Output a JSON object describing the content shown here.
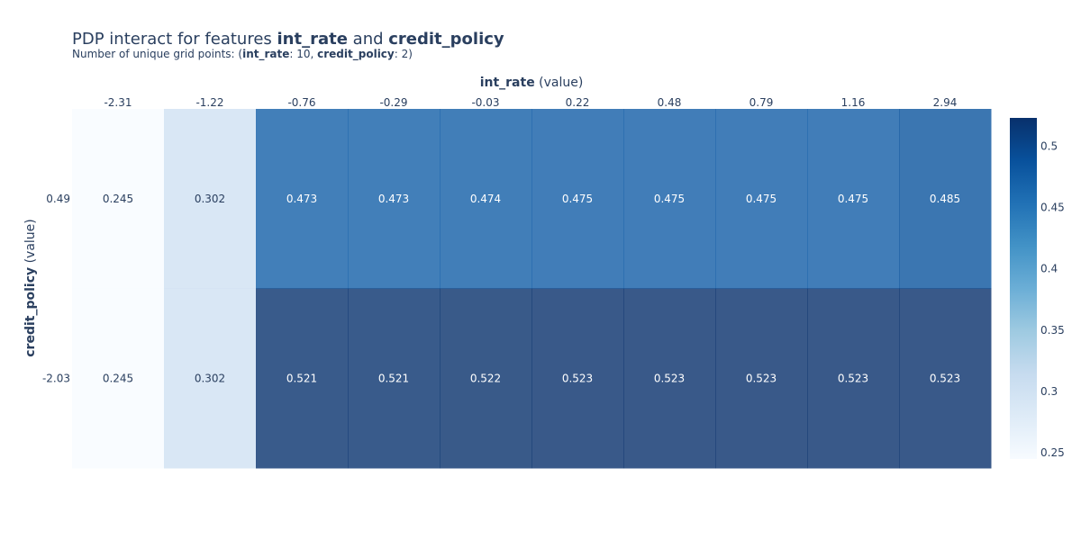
{
  "title": {
    "prefix": "PDP interact for features ",
    "feature_x": "int_rate",
    "joiner": " and ",
    "feature_y": "credit_policy"
  },
  "subtitle": {
    "prefix": "Number of unique grid points: (",
    "feature_x": "int_rate",
    "count_x": ": 10, ",
    "feature_y": "credit_policy",
    "count_y": ": 2)"
  },
  "chart_data": {
    "type": "heatmap",
    "title": "PDP interact for features int_rate and credit_policy",
    "xlabel": {
      "name": "int_rate",
      "suffix": " (value)"
    },
    "ylabel": {
      "name": "credit_policy",
      "suffix": " (value)"
    },
    "x": [
      "-2.31",
      "-1.22",
      "-0.76",
      "-0.29",
      "-0.03",
      "0.22",
      "0.48",
      "0.79",
      "1.16",
      "2.94"
    ],
    "y": [
      "0.49",
      "-2.03"
    ],
    "values": [
      [
        0.245,
        0.302,
        0.473,
        0.473,
        0.474,
        0.475,
        0.475,
        0.475,
        0.475,
        0.485
      ],
      [
        0.245,
        0.302,
        0.521,
        0.521,
        0.522,
        0.523,
        0.523,
        0.523,
        0.523,
        0.523
      ]
    ],
    "zrange": [
      0.245,
      0.523
    ],
    "colorscale": "Blues",
    "colorbar_ticks": [
      "0.25",
      "0.3",
      "0.35",
      "0.4",
      "0.45",
      "0.5"
    ],
    "grid": false
  }
}
